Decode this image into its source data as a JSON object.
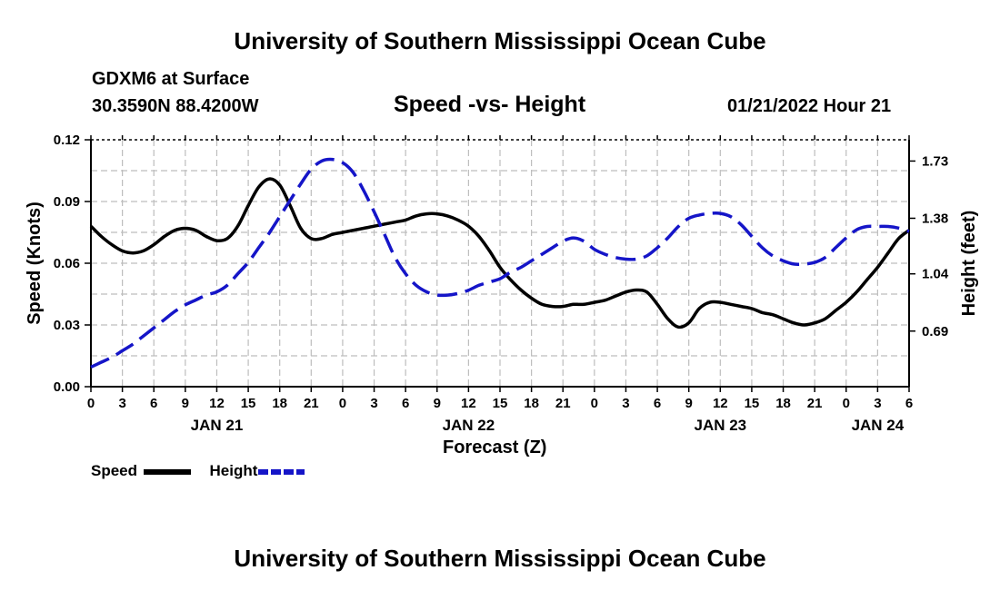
{
  "header": {
    "title": "University of Southern Mississippi Ocean Cube",
    "station": "GDXM6 at Surface",
    "coords": "30.3590N  88.4200W",
    "datetime": "01/21/2022 Hour 21",
    "footer_title": "University of Southern Mississippi Ocean Cube"
  },
  "legend": {
    "speed_label": "Speed",
    "height_label": "Height"
  },
  "colors": {
    "speed": "#000000",
    "height": "#1515c8",
    "grid": "#bdbdbd"
  },
  "chart_data": {
    "type": "line",
    "title": "Speed -vs- Height",
    "xlabel": "Forecast (Z)",
    "ylabel_left": "Speed (Knots)",
    "ylabel_right": "Height (feet)",
    "x_hours_range": [
      0,
      78
    ],
    "x_tick_labels": [
      "0",
      "3",
      "6",
      "9",
      "12",
      "15",
      "18",
      "21",
      "0",
      "3",
      "6",
      "9",
      "12",
      "15",
      "18",
      "21",
      "0",
      "3",
      "6",
      "9",
      "12",
      "15",
      "18",
      "21",
      "0",
      "3",
      "6"
    ],
    "day_labels": [
      {
        "label": "JAN 21",
        "hour": 12
      },
      {
        "label": "JAN 22",
        "hour": 36
      },
      {
        "label": "JAN 23",
        "hour": 60
      },
      {
        "label": "JAN 24",
        "hour": 75
      }
    ],
    "ylim_left": [
      0,
      0.12
    ],
    "yticks_left": [
      "0.00",
      "0.03",
      "0.06",
      "0.09",
      "0.12"
    ],
    "ylim_right": [
      0.35,
      1.86
    ],
    "yticks_right": [
      "0.69",
      "1.04",
      "1.38",
      "1.73"
    ],
    "grid": true,
    "series": [
      {
        "name": "Speed",
        "axis": "left",
        "style": "solid",
        "points": [
          [
            0,
            0.078
          ],
          [
            1,
            0.073
          ],
          [
            2,
            0.069
          ],
          [
            3,
            0.066
          ],
          [
            4,
            0.065
          ],
          [
            5,
            0.066
          ],
          [
            6,
            0.069
          ],
          [
            7,
            0.073
          ],
          [
            8,
            0.076
          ],
          [
            9,
            0.077
          ],
          [
            10,
            0.076
          ],
          [
            11,
            0.073
          ],
          [
            12,
            0.071
          ],
          [
            13,
            0.072
          ],
          [
            14,
            0.078
          ],
          [
            15,
            0.088
          ],
          [
            16,
            0.097
          ],
          [
            17,
            0.101
          ],
          [
            18,
            0.098
          ],
          [
            19,
            0.088
          ],
          [
            20,
            0.077
          ],
          [
            21,
            0.072
          ],
          [
            22,
            0.072
          ],
          [
            23,
            0.074
          ],
          [
            24,
            0.075
          ],
          [
            25,
            0.076
          ],
          [
            26,
            0.077
          ],
          [
            27,
            0.078
          ],
          [
            28,
            0.079
          ],
          [
            29,
            0.08
          ],
          [
            30,
            0.081
          ],
          [
            31,
            0.083
          ],
          [
            32,
            0.084
          ],
          [
            33,
            0.084
          ],
          [
            34,
            0.083
          ],
          [
            35,
            0.081
          ],
          [
            36,
            0.078
          ],
          [
            37,
            0.073
          ],
          [
            38,
            0.066
          ],
          [
            39,
            0.058
          ],
          [
            40,
            0.052
          ],
          [
            41,
            0.047
          ],
          [
            42,
            0.043
          ],
          [
            43,
            0.04
          ],
          [
            44,
            0.039
          ],
          [
            45,
            0.039
          ],
          [
            46,
            0.04
          ],
          [
            47,
            0.04
          ],
          [
            48,
            0.041
          ],
          [
            49,
            0.042
          ],
          [
            50,
            0.044
          ],
          [
            51,
            0.046
          ],
          [
            52,
            0.047
          ],
          [
            53,
            0.046
          ],
          [
            54,
            0.04
          ],
          [
            55,
            0.033
          ],
          [
            56,
            0.029
          ],
          [
            57,
            0.031
          ],
          [
            58,
            0.038
          ],
          [
            59,
            0.041
          ],
          [
            60,
            0.041
          ],
          [
            61,
            0.04
          ],
          [
            62,
            0.039
          ],
          [
            63,
            0.038
          ],
          [
            64,
            0.036
          ],
          [
            65,
            0.035
          ],
          [
            66,
            0.033
          ],
          [
            67,
            0.031
          ],
          [
            68,
            0.03
          ],
          [
            69,
            0.031
          ],
          [
            70,
            0.033
          ],
          [
            71,
            0.037
          ],
          [
            72,
            0.041
          ],
          [
            73,
            0.046
          ],
          [
            74,
            0.052
          ],
          [
            75,
            0.058
          ],
          [
            76,
            0.065
          ],
          [
            77,
            0.072
          ],
          [
            78,
            0.076
          ]
        ]
      },
      {
        "name": "Height",
        "axis": "right",
        "style": "dashed",
        "points": [
          [
            0,
            0.47
          ],
          [
            1,
            0.5
          ],
          [
            2,
            0.53
          ],
          [
            3,
            0.57
          ],
          [
            4,
            0.61
          ],
          [
            5,
            0.66
          ],
          [
            6,
            0.71
          ],
          [
            7,
            0.76
          ],
          [
            8,
            0.81
          ],
          [
            9,
            0.85
          ],
          [
            10,
            0.88
          ],
          [
            11,
            0.91
          ],
          [
            12,
            0.93
          ],
          [
            13,
            0.97
          ],
          [
            14,
            1.04
          ],
          [
            15,
            1.11
          ],
          [
            16,
            1.2
          ],
          [
            17,
            1.29
          ],
          [
            18,
            1.39
          ],
          [
            19,
            1.49
          ],
          [
            20,
            1.59
          ],
          [
            21,
            1.68
          ],
          [
            22,
            1.73
          ],
          [
            23,
            1.74
          ],
          [
            24,
            1.72
          ],
          [
            25,
            1.66
          ],
          [
            26,
            1.55
          ],
          [
            27,
            1.42
          ],
          [
            28,
            1.28
          ],
          [
            29,
            1.14
          ],
          [
            30,
            1.04
          ],
          [
            31,
            0.97
          ],
          [
            32,
            0.93
          ],
          [
            33,
            0.91
          ],
          [
            34,
            0.91
          ],
          [
            35,
            0.92
          ],
          [
            36,
            0.94
          ],
          [
            37,
            0.97
          ],
          [
            38,
            0.99
          ],
          [
            39,
            1.01
          ],
          [
            40,
            1.05
          ],
          [
            41,
            1.08
          ],
          [
            42,
            1.12
          ],
          [
            43,
            1.16
          ],
          [
            44,
            1.2
          ],
          [
            45,
            1.24
          ],
          [
            46,
            1.26
          ],
          [
            47,
            1.24
          ],
          [
            48,
            1.19
          ],
          [
            49,
            1.16
          ],
          [
            50,
            1.14
          ],
          [
            51,
            1.13
          ],
          [
            52,
            1.13
          ],
          [
            53,
            1.15
          ],
          [
            54,
            1.2
          ],
          [
            55,
            1.26
          ],
          [
            56,
            1.33
          ],
          [
            57,
            1.38
          ],
          [
            58,
            1.4
          ],
          [
            59,
            1.41
          ],
          [
            60,
            1.41
          ],
          [
            61,
            1.39
          ],
          [
            62,
            1.34
          ],
          [
            63,
            1.27
          ],
          [
            64,
            1.2
          ],
          [
            65,
            1.15
          ],
          [
            66,
            1.12
          ],
          [
            67,
            1.1
          ],
          [
            68,
            1.1
          ],
          [
            69,
            1.11
          ],
          [
            70,
            1.14
          ],
          [
            71,
            1.2
          ],
          [
            72,
            1.26
          ],
          [
            73,
            1.31
          ],
          [
            74,
            1.33
          ],
          [
            75,
            1.33
          ],
          [
            76,
            1.33
          ],
          [
            77,
            1.32
          ],
          [
            78,
            1.3
          ]
        ]
      }
    ]
  }
}
